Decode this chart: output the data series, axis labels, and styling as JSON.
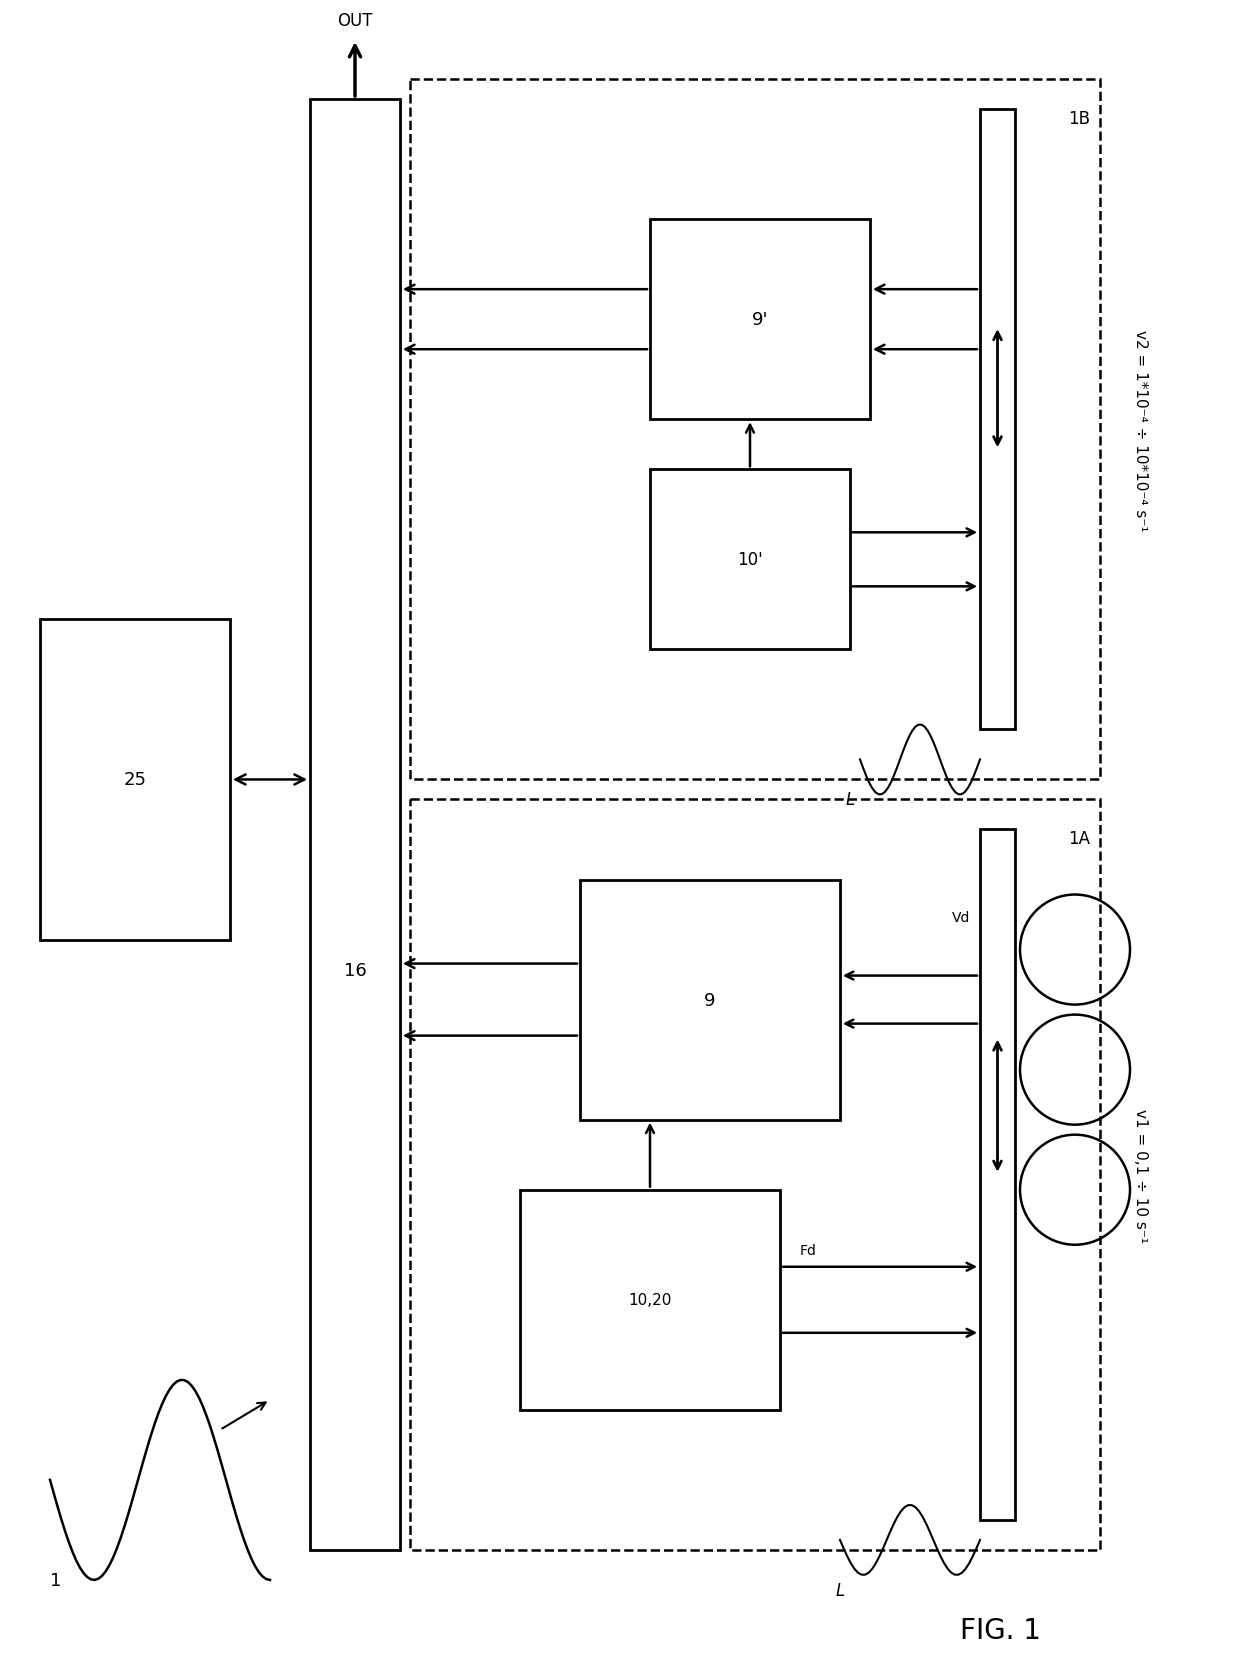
{
  "title": "FIG. 1",
  "bg_color": "#ffffff",
  "line_color": "#000000",
  "fig_width": 12.4,
  "fig_height": 16.81,
  "label_1": "1",
  "label_L_1A": "L",
  "label_L_1B": "L",
  "label_OUT": "OUT",
  "label_25": "25",
  "label_16": "16",
  "label_9": "9",
  "label_9prime": "9'",
  "label_10_20": "10,20",
  "label_10prime": "10'",
  "label_Fd": "Fd",
  "label_Vd": "Vd",
  "label_1A": "1A",
  "label_1B": "1B",
  "label_v1": "v1 = 0,1 ÷ 10 s⁻¹",
  "label_v2": "v2 = 1*10⁻⁴ ÷ 10*10⁻⁴ s⁻¹"
}
